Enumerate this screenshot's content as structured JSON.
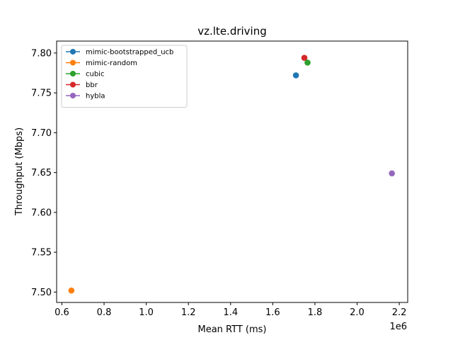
{
  "chart_data": {
    "type": "scatter",
    "title": "vz.lte.driving",
    "xlabel": "Mean RTT (ms)",
    "ylabel": "Throughput (Mbps)",
    "x_offset_label": "1e6",
    "xlim": [
      0.575,
      2.24
    ],
    "ylim": [
      7.487,
      7.815
    ],
    "xticks": [
      0.6,
      0.8,
      1.0,
      1.2,
      1.4,
      1.6,
      1.8,
      2.0,
      2.2
    ],
    "xtick_labels": [
      "0.6",
      "0.8",
      "1.0",
      "1.2",
      "1.4",
      "1.6",
      "1.8",
      "2.0",
      "2.2"
    ],
    "yticks": [
      7.5,
      7.55,
      7.6,
      7.65,
      7.7,
      7.75,
      7.8
    ],
    "ytick_labels": [
      "7.50",
      "7.55",
      "7.60",
      "7.65",
      "7.70",
      "7.75",
      "7.80"
    ],
    "grid": false,
    "legend_position": "top-left",
    "series": [
      {
        "name": "mimic-bootstrapped_ucb",
        "color": "#1f77b4",
        "x": [
          1.71
        ],
        "y": [
          7.772
        ]
      },
      {
        "name": "mimic-random",
        "color": "#ff7f0e",
        "x": [
          0.645
        ],
        "y": [
          7.502
        ]
      },
      {
        "name": "cubic",
        "color": "#2ca02c",
        "x": [
          1.765
        ],
        "y": [
          7.788
        ]
      },
      {
        "name": "bbr",
        "color": "#d62728",
        "x": [
          1.75
        ],
        "y": [
          7.794
        ]
      },
      {
        "name": "hybla",
        "color": "#9467bd",
        "x": [
          2.165
        ],
        "y": [
          7.649
        ]
      }
    ]
  }
}
